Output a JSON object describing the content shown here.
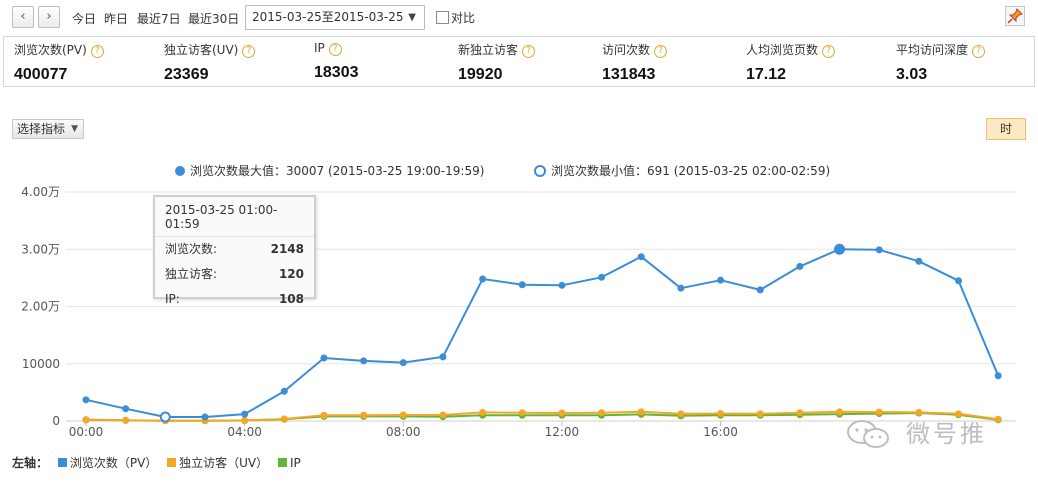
{
  "toolbar": {
    "prev_icon": "‹",
    "next_icon": "›",
    "quick_ranges": [
      "今日",
      "昨日",
      "最近7日",
      "最近30日"
    ],
    "date_range": "2015-03-25至2015-03-25",
    "compare_label": "对比"
  },
  "metrics": [
    {
      "label": "浏览次数(PV)",
      "value": "400077"
    },
    {
      "label": "独立访客(UV)",
      "value": "23369"
    },
    {
      "label": "IP",
      "value": "18303"
    },
    {
      "label": "新独立访客",
      "value": "19920"
    },
    {
      "label": "访问次数",
      "value": "131843"
    },
    {
      "label": "人均浏览页数",
      "value": "17.12"
    },
    {
      "label": "平均访问深度",
      "value": "3.03"
    }
  ],
  "controls": {
    "select_indicator": "选择指标",
    "granularity": "时"
  },
  "tooltip": {
    "title": "2015-03-25 01:00-01:59",
    "rows": [
      {
        "label": "浏览次数:",
        "value": "2148"
      },
      {
        "label": "独立访客:",
        "value": "120"
      },
      {
        "label": "IP:",
        "value": "108"
      }
    ]
  },
  "bottom_legend": {
    "axis_label": "左轴：",
    "items": [
      {
        "label": "浏览次数（PV）",
        "color": "#3b8dd8"
      },
      {
        "label": "独立访客（UV）",
        "color": "#f5a623"
      },
      {
        "label": "IP",
        "color": "#63b539"
      }
    ]
  },
  "watermark": "微号推",
  "chart_data": {
    "type": "line",
    "x": [
      0,
      1,
      2,
      3,
      4,
      5,
      6,
      7,
      8,
      9,
      10,
      11,
      12,
      13,
      14,
      15,
      16,
      17,
      18,
      19,
      20,
      21,
      22,
      23
    ],
    "x_ticks": [
      {
        "x": 0,
        "label": "00:00"
      },
      {
        "x": 4,
        "label": "04:00"
      },
      {
        "x": 8,
        "label": "08:00"
      },
      {
        "x": 12,
        "label": "12:00"
      },
      {
        "x": 16,
        "label": "16:00"
      }
    ],
    "y_ticks": [
      {
        "v": 0,
        "label": "0"
      },
      {
        "v": 10000,
        "label": "10000"
      },
      {
        "v": 20000,
        "label": "2.00万"
      },
      {
        "v": 30000,
        "label": "3.00万"
      },
      {
        "v": 40000,
        "label": "4.00万"
      }
    ],
    "ylim": [
      0,
      40000
    ],
    "grid": true,
    "top_legend": [
      {
        "label": "浏览次数最大值：30007 (2015-03-25 19:00-19:59)",
        "marker": "filled"
      },
      {
        "label": "浏览次数最小值：691 (2015-03-25 02:00-02:59)",
        "marker": "hollow"
      }
    ],
    "max_point": {
      "x": 19,
      "value": 30007
    },
    "min_point": {
      "x": 2,
      "value": 691
    },
    "series": [
      {
        "name": "浏览次数（PV）",
        "color": "#3b8dd8",
        "values": [
          3700,
          2148,
          691,
          700,
          1200,
          5200,
          11000,
          10500,
          10200,
          11200,
          24800,
          23800,
          23700,
          25100,
          28700,
          23200,
          24600,
          22900,
          27000,
          30007,
          29900,
          27900,
          24500,
          7900
        ]
      },
      {
        "name": "独立访客（UV）",
        "color": "#f5a623",
        "values": [
          250,
          120,
          60,
          60,
          90,
          350,
          1000,
          1000,
          1050,
          1050,
          1500,
          1450,
          1400,
          1450,
          1600,
          1250,
          1300,
          1250,
          1450,
          1600,
          1550,
          1500,
          1250,
          300
        ]
      },
      {
        "name": "IP",
        "color": "#63b539",
        "values": [
          200,
          108,
          50,
          50,
          80,
          300,
          800,
          800,
          800,
          750,
          1000,
          1000,
          1000,
          1000,
          1150,
          900,
          1000,
          1000,
          1100,
          1200,
          1300,
          1400,
          1100,
          200
        ]
      }
    ]
  }
}
